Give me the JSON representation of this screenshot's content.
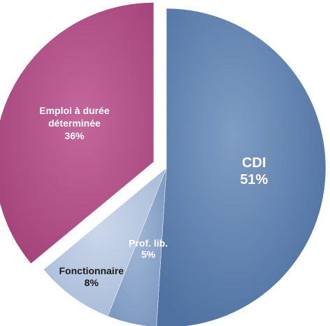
{
  "chart_data": {
    "type": "pie",
    "title": "",
    "slices": [
      {
        "label": "CDI",
        "value": 51,
        "display": "51%",
        "color": "#5b7fad",
        "text_color": "#ffffff",
        "exploded": false
      },
      {
        "label": "Prof. lib.",
        "value": 5,
        "display": "5%",
        "color": "#8aa4c8",
        "text_color": "#ffffff",
        "exploded": false
      },
      {
        "label": "Fonctionnaire",
        "value": 8,
        "display": "8%",
        "color": "#b3c4de",
        "text_color": "#1a1a1a",
        "exploded": false
      },
      {
        "label": "Emploi à durée déterminée",
        "label_lines": [
          "Emploi à durée",
          "déterminée"
        ],
        "value": 36,
        "display": "36%",
        "color": "#b04f85",
        "text_color": "#ffffff",
        "exploded": true
      }
    ]
  }
}
